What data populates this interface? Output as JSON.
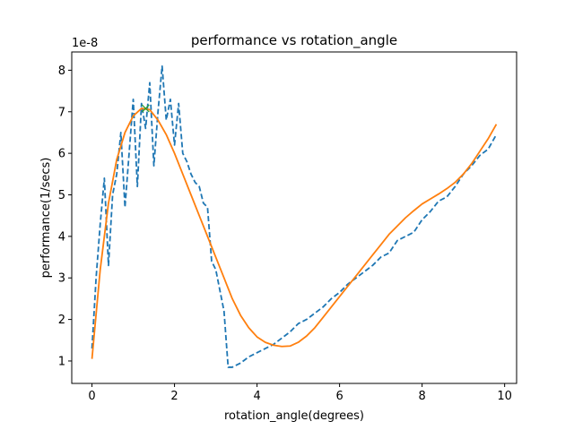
{
  "chart_data": {
    "type": "line",
    "title": "performance vs rotation_angle",
    "xlabel": "rotation_angle(degrees)",
    "ylabel": "performance(1/secs)",
    "y_offset_label": "1e-8",
    "xlim": [
      -0.49,
      10.29
    ],
    "ylim": [
      0.46,
      8.44
    ],
    "xticks": [
      0,
      2,
      4,
      6,
      8,
      10
    ],
    "yticks": [
      1,
      2,
      3,
      4,
      5,
      6,
      7,
      8
    ],
    "grid": false,
    "colors": {
      "measured": "#1f77b4",
      "fit": "#ff7f0e",
      "peak": "#2ca02c"
    },
    "series": [
      {
        "style": "dashed",
        "x": [
          0.0,
          0.1,
          0.2,
          0.3,
          0.4,
          0.5,
          0.6,
          0.7,
          0.8,
          0.9,
          1.0,
          1.1,
          1.2,
          1.3,
          1.4,
          1.5,
          1.6,
          1.7,
          1.8,
          1.9,
          2.0,
          2.1,
          2.2,
          2.3,
          2.4,
          2.5,
          2.6,
          2.7,
          2.8,
          2.9,
          3.0,
          3.1,
          3.2,
          3.3,
          3.4,
          3.6,
          3.8,
          4.0,
          4.2,
          4.4,
          4.6,
          4.8,
          5.0,
          5.2,
          5.4,
          5.6,
          5.8,
          6.0,
          6.2,
          6.4,
          6.6,
          6.8,
          7.0,
          7.2,
          7.4,
          7.6,
          7.8,
          8.0,
          8.2,
          8.4,
          8.6,
          8.8,
          9.0,
          9.2,
          9.4,
          9.6,
          9.8
        ],
        "y": [
          1.3,
          3.0,
          4.3,
          5.4,
          3.3,
          5.0,
          5.5,
          6.5,
          4.7,
          6.0,
          7.3,
          5.2,
          7.2,
          6.6,
          7.7,
          5.7,
          7.0,
          8.1,
          6.8,
          7.3,
          6.2,
          7.2,
          6.0,
          5.8,
          5.5,
          5.3,
          5.2,
          4.8,
          4.7,
          3.4,
          3.2,
          2.7,
          2.2,
          0.85,
          0.85,
          0.95,
          1.1,
          1.2,
          1.3,
          1.4,
          1.55,
          1.7,
          1.9,
          2.0,
          2.15,
          2.3,
          2.5,
          2.65,
          2.85,
          3.0,
          3.15,
          3.3,
          3.5,
          3.6,
          3.9,
          4.0,
          4.1,
          4.4,
          4.6,
          4.85,
          4.95,
          5.2,
          5.5,
          5.7,
          5.95,
          6.1,
          6.45
        ]
      },
      {
        "style": "solid",
        "x": [
          0.0,
          0.2,
          0.4,
          0.6,
          0.8,
          1.0,
          1.2,
          1.4,
          1.6,
          1.8,
          2.0,
          2.2,
          2.4,
          2.6,
          2.8,
          3.0,
          3.2,
          3.4,
          3.6,
          3.8,
          4.0,
          4.2,
          4.4,
          4.6,
          4.8,
          5.0,
          5.2,
          5.4,
          5.6,
          5.8,
          6.0,
          6.2,
          6.4,
          6.6,
          6.8,
          7.0,
          7.2,
          7.4,
          7.6,
          7.8,
          8.0,
          8.2,
          8.4,
          8.6,
          8.8,
          9.0,
          9.2,
          9.4,
          9.6,
          9.8
        ],
        "y": [
          1.05,
          3.2,
          4.8,
          5.85,
          6.5,
          6.9,
          7.08,
          7.05,
          6.8,
          6.45,
          6.0,
          5.5,
          5.0,
          4.5,
          4.0,
          3.5,
          3.0,
          2.5,
          2.1,
          1.8,
          1.58,
          1.45,
          1.38,
          1.35,
          1.36,
          1.45,
          1.6,
          1.8,
          2.05,
          2.3,
          2.55,
          2.8,
          3.05,
          3.3,
          3.55,
          3.8,
          4.05,
          4.25,
          4.45,
          4.62,
          4.78,
          4.9,
          5.02,
          5.15,
          5.3,
          5.5,
          5.75,
          6.05,
          6.35,
          6.7
        ]
      },
      {
        "style": "marker-x",
        "x": [
          1.3
        ],
        "y": [
          7.08
        ]
      }
    ]
  }
}
